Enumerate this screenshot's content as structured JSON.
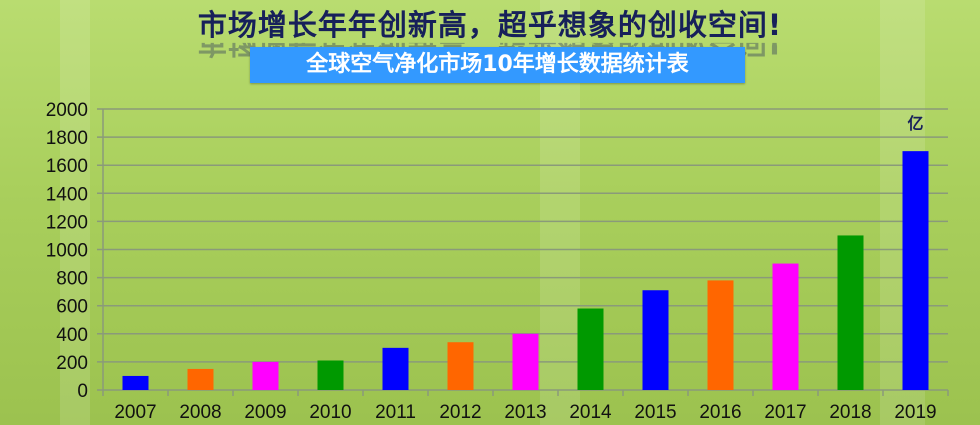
{
  "header": {
    "title": "市场增长年年创新高，超乎想象的创收空间!",
    "subtitle": "全球空气净化市场10年增长数据统计表"
  },
  "chart_data": {
    "type": "bar",
    "title": "全球空气净化市场10年增长数据统计表",
    "categories": [
      "2007",
      "2008",
      "2009",
      "2010",
      "2011",
      "2012",
      "2013",
      "2014",
      "2015",
      "2016",
      "2017",
      "2018",
      "2019"
    ],
    "values": [
      100,
      150,
      200,
      210,
      300,
      340,
      400,
      580,
      710,
      780,
      900,
      1100,
      1700
    ],
    "colors": [
      "#0000ff",
      "#ff6600",
      "#ff00ff",
      "#009900",
      "#0000ff",
      "#ff6600",
      "#ff00ff",
      "#009900",
      "#0000ff",
      "#ff6600",
      "#ff00ff",
      "#009900",
      "#0000ff"
    ],
    "unit_label": "亿",
    "ylim": [
      0,
      2000
    ],
    "yticks": [
      0,
      200,
      400,
      600,
      800,
      1000,
      1200,
      1400,
      1600,
      1800,
      2000
    ],
    "grid": true,
    "xlabel": "",
    "ylabel": ""
  }
}
